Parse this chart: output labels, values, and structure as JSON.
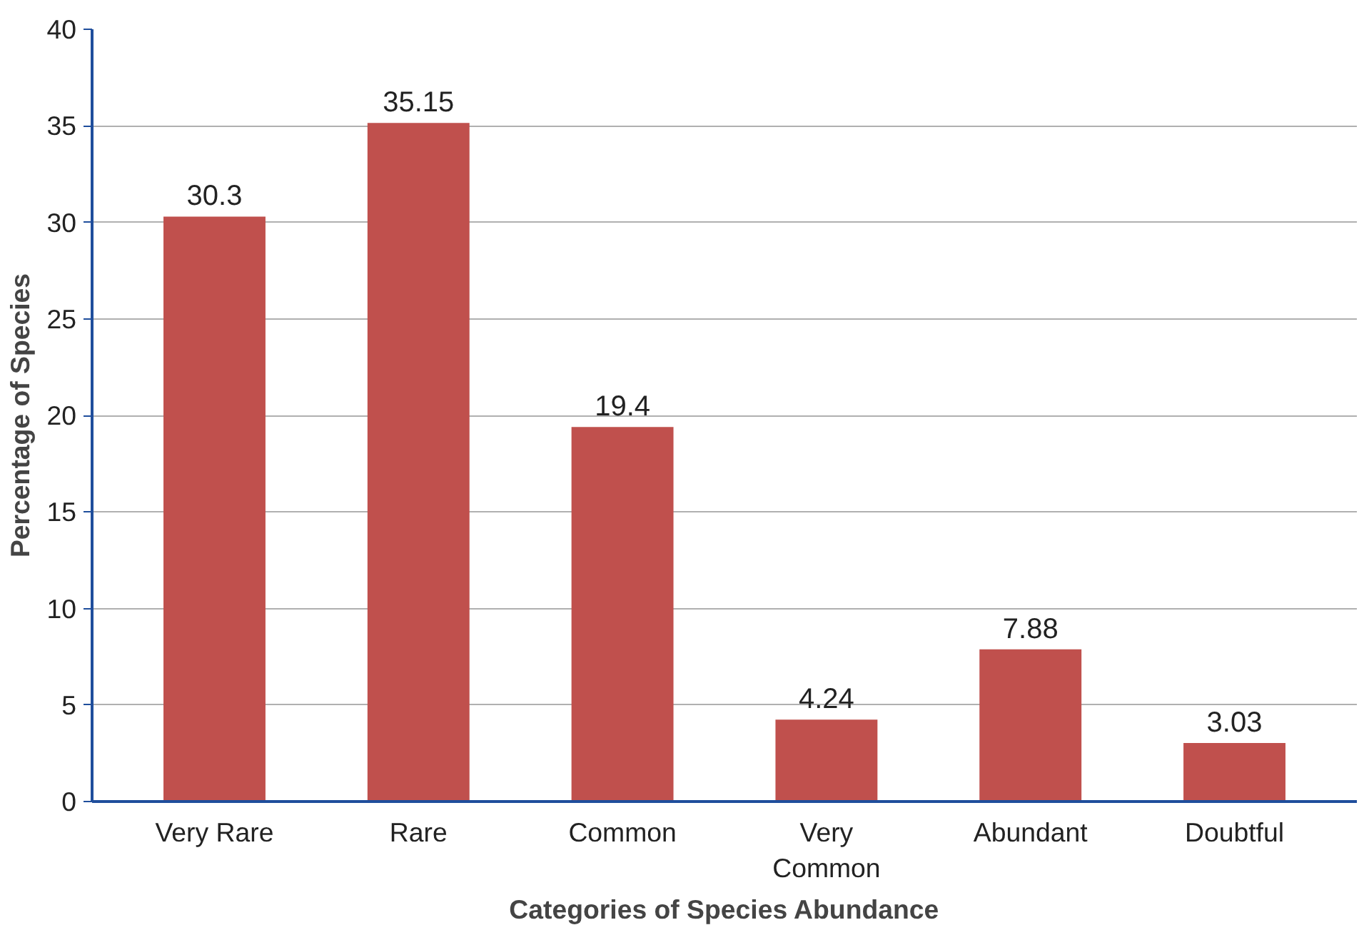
{
  "chart_data": {
    "type": "bar",
    "xlabel": "Categories of Species Abundance",
    "ylabel": "Percentage of Species",
    "categories": [
      "Very Rare",
      "Rare",
      "Common",
      "Very Common",
      "Abundant",
      "Doubtful"
    ],
    "values": [
      30.3,
      35.15,
      19.4,
      4.24,
      7.88,
      3.03
    ],
    "color": "#c0504d",
    "ylim": [
      0,
      40
    ],
    "yticks": [
      0,
      5,
      10,
      15,
      20,
      25,
      30,
      35,
      40
    ],
    "grid": "y",
    "data_labels": true
  }
}
